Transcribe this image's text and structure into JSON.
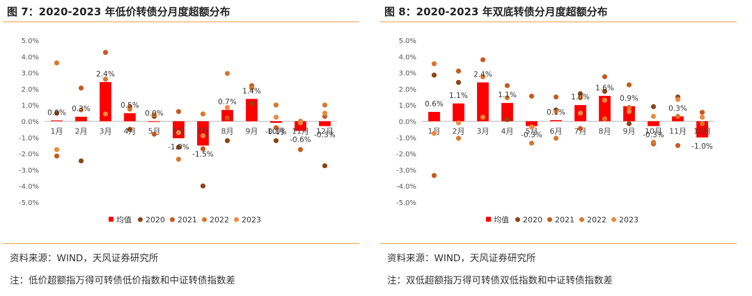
{
  "colors": {
    "avg": "#ff0000",
    "s2020": "#8b4513",
    "s2021": "#c85a1e",
    "s2022": "#d9772c",
    "s2023": "#ee8a3e"
  },
  "legend_labels": [
    "均值",
    "2020",
    "2021",
    "2022",
    "2023"
  ],
  "panels": [
    {
      "title": "图 7：2020-2023 年低价转债分月度超额分布",
      "source": "资料来源：WIND，天风证券研究所",
      "note": "注：低价超额指万得可转债低价指数和中证转债指数差",
      "chart_data": {
        "type": "bar",
        "categories": [
          "1月",
          "2月",
          "3月",
          "4月",
          "5月",
          "6月",
          "7月",
          "8月",
          "9月",
          "10月",
          "11月",
          "12月"
        ],
        "ylim": [
          -5,
          5
        ],
        "yticks": [
          "5.0%",
          "4.0%",
          "3.0%",
          "2.0%",
          "1.0%",
          "0.0%",
          "-1.0%",
          "-2.0%",
          "-3.0%",
          "-4.0%",
          "-5.0%"
        ],
        "avg_labels": [
          "0.0%",
          "0.3%",
          "2.4%",
          "0.5%",
          "0.0%",
          "-1.0%",
          "-1.5%",
          "0.7%",
          "1.4%",
          "-0.1%",
          "-0.6%",
          "-0.3%"
        ],
        "series": [
          {
            "name": "均值",
            "values": [
              0.05,
              0.28,
              2.42,
              0.5,
              0.0,
              -1.05,
              -1.5,
              0.7,
              1.38,
              -0.1,
              -0.6,
              -0.3
            ]
          },
          {
            "name": "2020",
            "values": [
              0.5,
              -2.45,
              null,
              -0.5,
              0.3,
              -1.6,
              -4.0,
              -1.2,
              1.1,
              -1.2,
              null,
              -2.75
            ]
          },
          {
            "name": "2021",
            "values": [
              -2.15,
              2.05,
              4.25,
              0.9,
              -0.8,
              0.6,
              -1.7,
              0.2,
              2.2,
              -0.4,
              -1.75,
              0.3
            ]
          },
          {
            "name": "2022",
            "values": [
              3.6,
              0.7,
              2.6,
              0.75,
              0.4,
              -2.35,
              0.45,
              2.95,
              2.05,
              1.0,
              0.0,
              1.0
            ]
          },
          {
            "name": "2023",
            "values": [
              -1.75,
              null,
              0.45,
              null,
              null,
              -0.7,
              -0.9,
              0.85,
              null,
              0.25,
              -0.1,
              0.5
            ]
          }
        ]
      }
    },
    {
      "title": "图 8：2020-2023 年双底转债分月度超额分布",
      "source": "资料来源：WIND，天风证券研究所",
      "note": "注：双低超额指万得可转债双低指数和中证转债指数差",
      "chart_data": {
        "type": "bar",
        "categories": [
          "1月",
          "2月",
          "3月",
          "4月",
          "5月",
          "6月",
          "7月",
          "8月",
          "9月",
          "10月",
          "11月",
          "12月"
        ],
        "ylim": [
          -5,
          5
        ],
        "yticks": [
          "5.0%",
          "4.0%",
          "3.0%",
          "2.0%",
          "1.0%",
          "0.0%",
          "-1.0%",
          "-2.0%",
          "-3.0%",
          "-4.0%",
          "-5.0%"
        ],
        "avg_labels": [
          "0.6%",
          "1.1%",
          "2.4%",
          "1.1%",
          "-0.3%",
          "0.1%",
          "1.0%",
          "1.6%",
          "0.9%",
          "-0.3%",
          "0.3%",
          "-1.0%"
        ],
        "series": [
          {
            "name": "均值",
            "values": [
              0.58,
              1.1,
              2.4,
              1.13,
              -0.3,
              0.07,
              1.0,
              1.57,
              0.93,
              -0.3,
              0.3,
              -1.0
            ]
          },
          {
            "name": "2020",
            "values": [
              2.85,
              2.4,
              null,
              0.1,
              null,
              0.7,
              1.7,
              1.85,
              -0.15,
              0.9,
              1.5,
              null
            ]
          },
          {
            "name": "2021",
            "values": [
              -3.35,
              3.1,
              3.8,
              2.2,
              1.55,
              1.5,
              -0.45,
              2.75,
              2.25,
              -1.4,
              -1.5,
              0.55
            ]
          },
          {
            "name": "2022",
            "values": [
              3.55,
              -1.05,
              2.75,
              1.45,
              -1.35,
              -1.05,
              1.45,
              0.15,
              0.85,
              -1.3,
              0.3,
              -0.15
            ]
          },
          {
            "name": "2023",
            "values": [
              -0.75,
              -0.1,
              0.25,
              null,
              -0.35,
              0.6,
              0.5,
              1.3,
              0.6,
              0.3,
              1.35,
              0.25
            ]
          }
        ]
      }
    }
  ]
}
